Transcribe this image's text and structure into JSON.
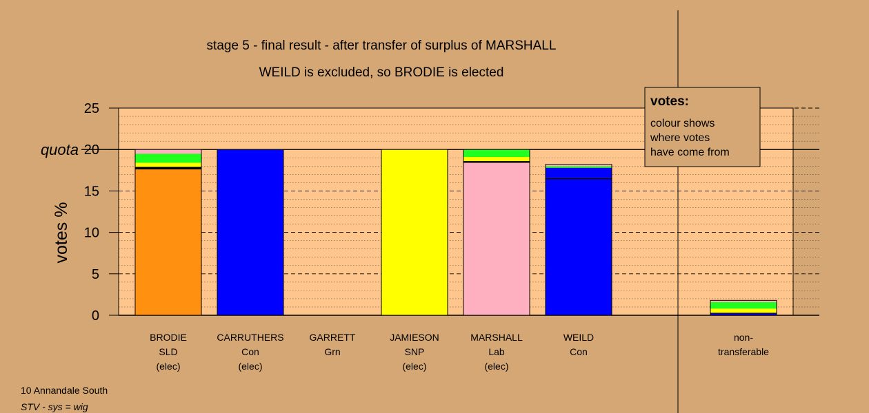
{
  "title_lines": [
    "stage 5 - final result - after transfer of surplus of MARSHALL",
    "WEILD is excluded, so BRODIE is elected"
  ],
  "footer": {
    "line1": "10 Annandale South",
    "line2": "STV - sys = wig"
  },
  "legend": {
    "title": "votes:",
    "lines": [
      "colour shows",
      "where votes",
      "have come from"
    ]
  },
  "quota_label": "quota",
  "colors": {
    "background": "#d4a774",
    "plot_background": "#fec68c",
    "orange": "#ff9010",
    "blue": "#0000ff",
    "yellow": "#ffff00",
    "pink": "#ffb0c0",
    "green": "#20ff20",
    "black": "#000000"
  },
  "chart_data": {
    "type": "bar",
    "stacked": true,
    "ylabel": "votes %",
    "ylim": [
      0,
      25
    ],
    "yticks": [
      0,
      5,
      10,
      15,
      20,
      25
    ],
    "quota": 20,
    "grid": true,
    "categories": [
      {
        "lines": [
          "BRODIE",
          "SLD",
          "(elec)"
        ],
        "segments": [
          {
            "value": 17.6,
            "color": "orange"
          },
          {
            "value": 0.3,
            "color": "black"
          },
          {
            "value": 0.5,
            "color": "yellow"
          },
          {
            "value": 1.1,
            "color": "green"
          },
          {
            "value": 0.5,
            "color": "pink"
          }
        ]
      },
      {
        "lines": [
          "CARRUTHERS",
          "Con",
          "(elec)"
        ],
        "segments": [
          {
            "value": 20.0,
            "color": "blue"
          }
        ]
      },
      {
        "lines": [
          "GARRETT",
          "Grn"
        ],
        "segments": []
      },
      {
        "lines": [
          "JAMIESON",
          "SNP",
          "(elec)"
        ],
        "segments": [
          {
            "value": 20.0,
            "color": "yellow"
          }
        ]
      },
      {
        "lines": [
          "MARSHALL",
          "Lab",
          "(elec)"
        ],
        "segments": [
          {
            "value": 18.4,
            "color": "pink"
          },
          {
            "value": 0.2,
            "color": "black"
          },
          {
            "value": 0.5,
            "color": "yellow"
          },
          {
            "value": 0.9,
            "color": "green"
          }
        ]
      },
      {
        "lines": [
          "WEILD",
          "Con"
        ],
        "segments": [
          {
            "value": 16.4,
            "color": "blue"
          },
          {
            "value": 0.15,
            "color": "black"
          },
          {
            "value": 1.25,
            "color": "blue"
          },
          {
            "value": 0.2,
            "color": "green"
          },
          {
            "value": 0.2,
            "color": "pink"
          }
        ]
      }
    ],
    "nontransferable": {
      "lines": [
        "non-",
        "transferable"
      ],
      "segments": [
        {
          "value": 0.2,
          "color": "blue"
        },
        {
          "value": 0.1,
          "color": "black"
        },
        {
          "value": 0.5,
          "color": "yellow"
        },
        {
          "value": 0.8,
          "color": "green"
        },
        {
          "value": 0.2,
          "color": "pink"
        }
      ]
    }
  }
}
